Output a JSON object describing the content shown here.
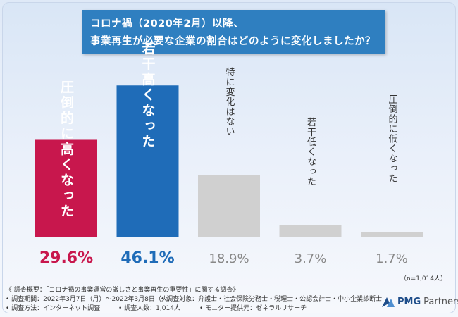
{
  "title": {
    "line1": "コロナ禍（2020年2月）以降、",
    "line2": "事業再生が必要な企業の割合はどのように変化しましたか？"
  },
  "note": "（n=1,014人）",
  "chart_data": {
    "type": "bar",
    "title": "コロナ禍（2020年2月）以降、事業再生が必要な企業の割合はどのように変化しましたか？",
    "categories": [
      "圧倒的に高くなった",
      "若干高くなった",
      "特に変化はない",
      "若干低くなった",
      "圧倒的に低くなった"
    ],
    "values": [
      29.6,
      46.1,
      18.9,
      3.7,
      1.7
    ],
    "labels": [
      "29.6%",
      "46.1%",
      "18.9%",
      "3.7%",
      "1.7%"
    ],
    "colors": [
      "#c8174d",
      "#1f6cb8",
      "#d0d0d0",
      "#d0d0d0",
      "#d0d0d0"
    ],
    "value_colors": [
      "#c8174d",
      "#1f6cb8",
      "#888888",
      "#888888",
      "#888888"
    ],
    "ylim": [
      0,
      50
    ],
    "xlabel": "",
    "ylabel": ""
  },
  "footer": {
    "overview": "《 調査概要：「コロナ禍の事業運営の厳しさと事業再生の重要性」に関する調査》",
    "period": "• 調査期間：2022年3月7日（月）〜2022年3月8日（火）",
    "target": "• 調査対象：弁護士・社会保険労務士・税理士・公認会計士・中小企業診断士",
    "method": "• 調査方法：インターネット調査",
    "people": "• 調査人数：1,014人",
    "provider": "• モニター提供元：ゼネラルリサーチ"
  },
  "logo": {
    "brand": "PMG",
    "suffix": "Partners"
  }
}
